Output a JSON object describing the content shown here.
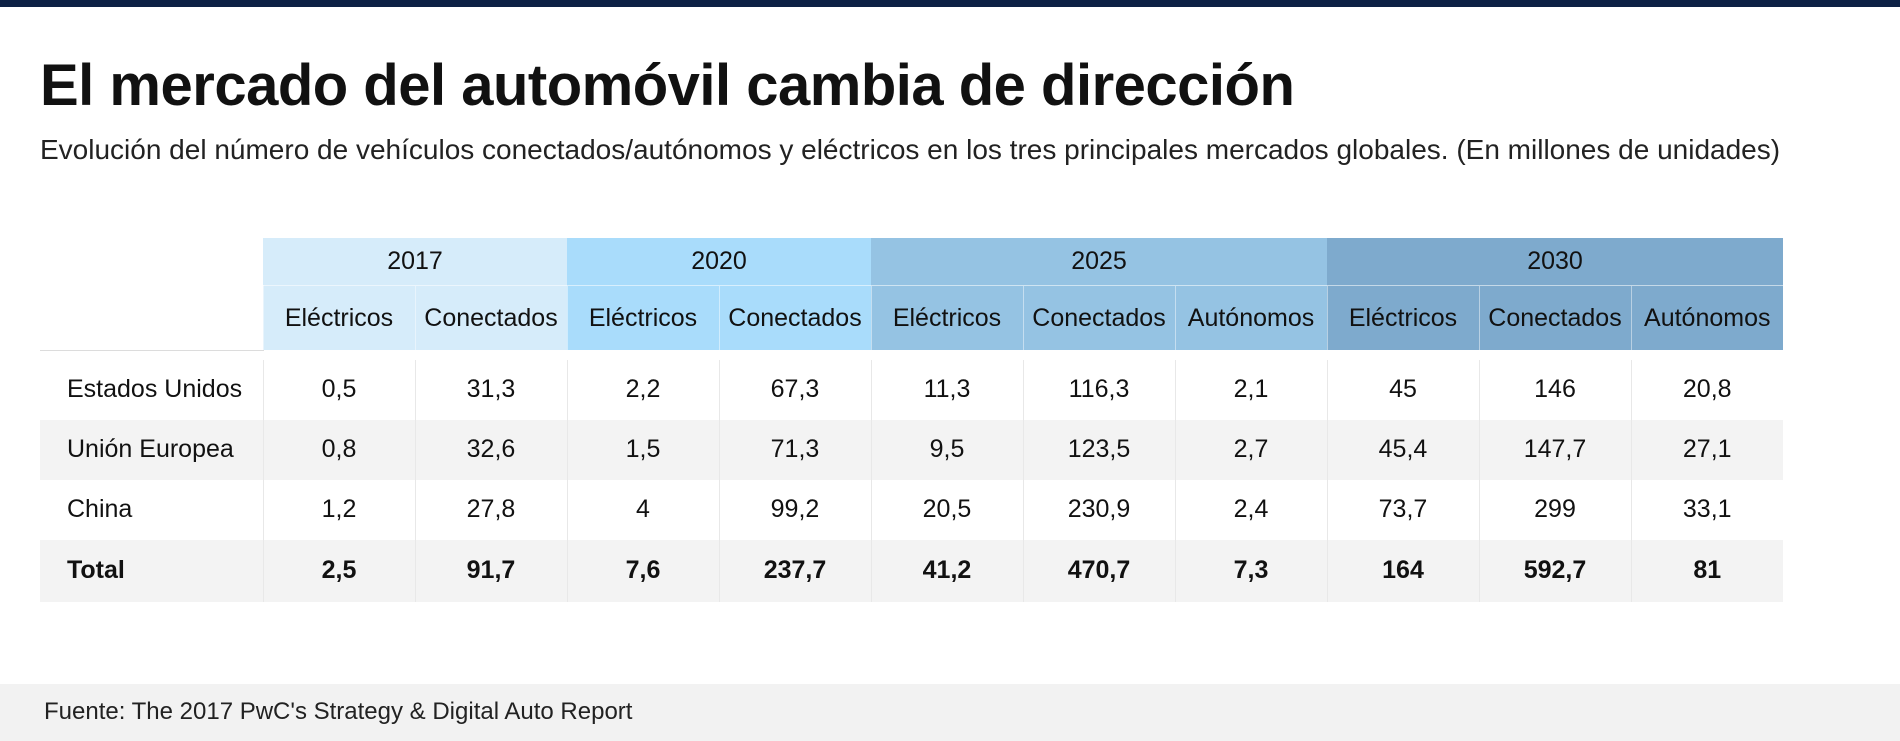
{
  "theme": {
    "top_bar_color": "#0d2145",
    "year_colors": [
      "#d6ecfa",
      "#a9dcfb",
      "#95c3e3",
      "#7eaacd"
    ]
  },
  "header": {
    "title": "El mercado del automóvil cambia de dirección",
    "subtitle": "Evolución del número de vehículos conectados/autónomos y eléctricos en los tres principales mercados globales. (En millones de unidades)"
  },
  "chart_data": {
    "type": "table",
    "title": "El mercado del automóvil cambia de dirección",
    "subtitle": "Evolución del número de vehículos conectados/autónomos y eléctricos en los tres principales mercados globales. (En millones de unidades)",
    "unit": "millones de unidades",
    "years": [
      "2017",
      "2020",
      "2025",
      "2030"
    ],
    "columns": [
      {
        "year": "2017",
        "label": "Eléctricos"
      },
      {
        "year": "2017",
        "label": "Conectados"
      },
      {
        "year": "2020",
        "label": "Eléctricos"
      },
      {
        "year": "2020",
        "label": "Conectados"
      },
      {
        "year": "2025",
        "label": "Eléctricos"
      },
      {
        "year": "2025",
        "label": "Conectados"
      },
      {
        "year": "2025",
        "label": "Autónomos"
      },
      {
        "year": "2030",
        "label": "Eléctricos"
      },
      {
        "year": "2030",
        "label": "Conectados"
      },
      {
        "year": "2030",
        "label": "Autónomos"
      }
    ],
    "rows": [
      {
        "label": "Estados Unidos",
        "values": [
          "0,5",
          "31,3",
          "2,2",
          "67,3",
          "11,3",
          "116,3",
          "2,1",
          "45",
          "146",
          "20,8"
        ]
      },
      {
        "label": "Unión Europea",
        "values": [
          "0,8",
          "32,6",
          "1,5",
          "71,3",
          "9,5",
          "123,5",
          "2,7",
          "45,4",
          "147,7",
          "27,1"
        ]
      },
      {
        "label": "China",
        "values": [
          "1,2",
          "27,8",
          "4",
          "99,2",
          "20,5",
          "230,9",
          "2,4",
          "73,7",
          "299",
          "33,1"
        ]
      },
      {
        "label": "Total",
        "values": [
          "2,5",
          "91,7",
          "7,6",
          "237,7",
          "41,2",
          "470,7",
          "7,3",
          "164",
          "592,7",
          "81"
        ]
      }
    ]
  },
  "footer": {
    "source": "Fuente: The 2017 PwC's Strategy & Digital Auto Report"
  }
}
